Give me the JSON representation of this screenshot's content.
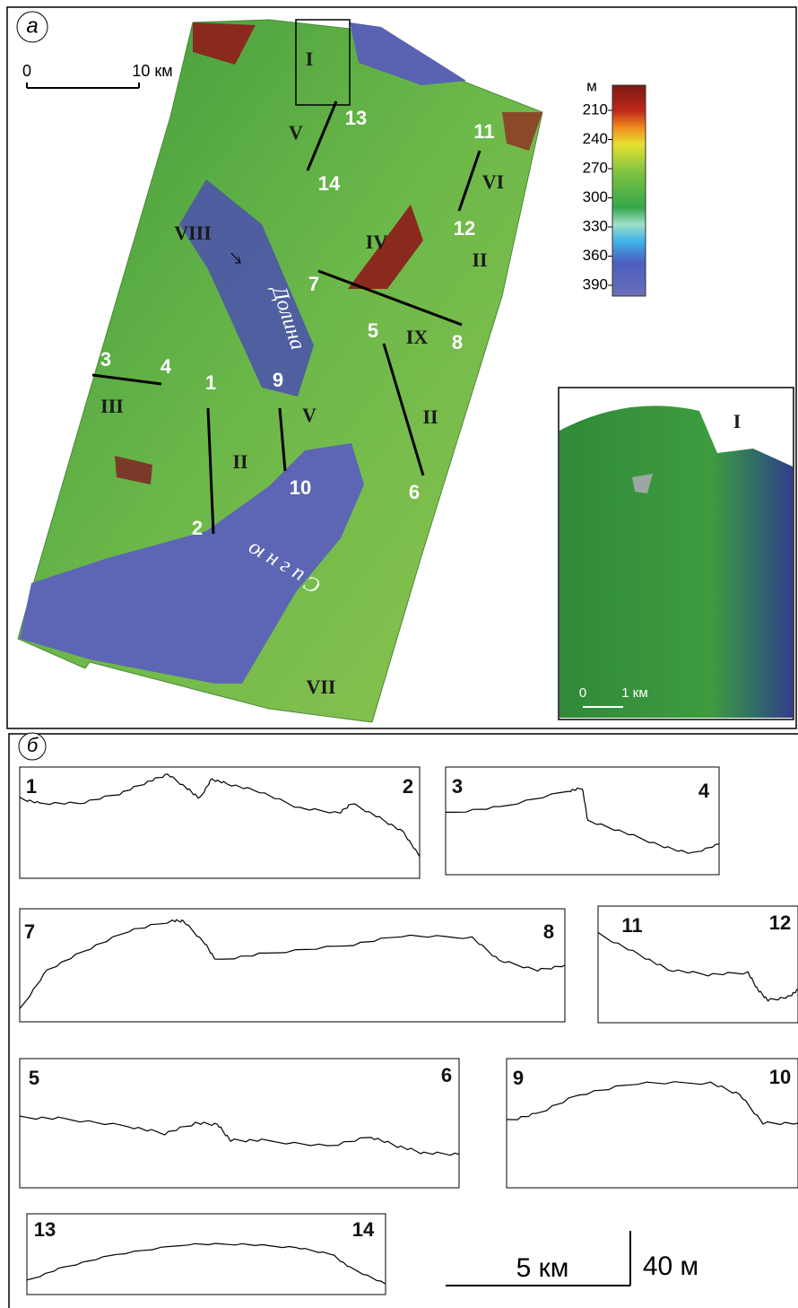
{
  "panel_a": {
    "label": "а",
    "scale": {
      "start": "0",
      "end": "10 км"
    },
    "legend": {
      "unit": "м",
      "ticks": [
        210,
        240,
        270,
        300,
        330,
        360,
        390
      ]
    },
    "roman_labels": [
      "I",
      "V",
      "VIII",
      "IV",
      "VI",
      "II",
      "IX",
      "II",
      "V",
      "III",
      "II",
      "VII"
    ],
    "profile_points": [
      "1",
      "2",
      "3",
      "4",
      "5",
      "6",
      "7",
      "8",
      "9",
      "10",
      "11",
      "12",
      "13",
      "14"
    ],
    "place_names": [
      "Долина",
      "Сигню"
    ],
    "inset": {
      "label": "I",
      "scale_start": "0",
      "scale_end": "1 км"
    }
  },
  "panel_b": {
    "label": "б",
    "profiles": [
      {
        "start": "1",
        "end": "2"
      },
      {
        "start": "3",
        "end": "4"
      },
      {
        "start": "7",
        "end": "8"
      },
      {
        "start": "11",
        "end": "12"
      },
      {
        "start": "5",
        "end": "6"
      },
      {
        "start": "9",
        "end": "10"
      },
      {
        "start": "13",
        "end": "14"
      }
    ],
    "scale_horizontal": "5 км",
    "scale_vertical": "40 м"
  }
}
